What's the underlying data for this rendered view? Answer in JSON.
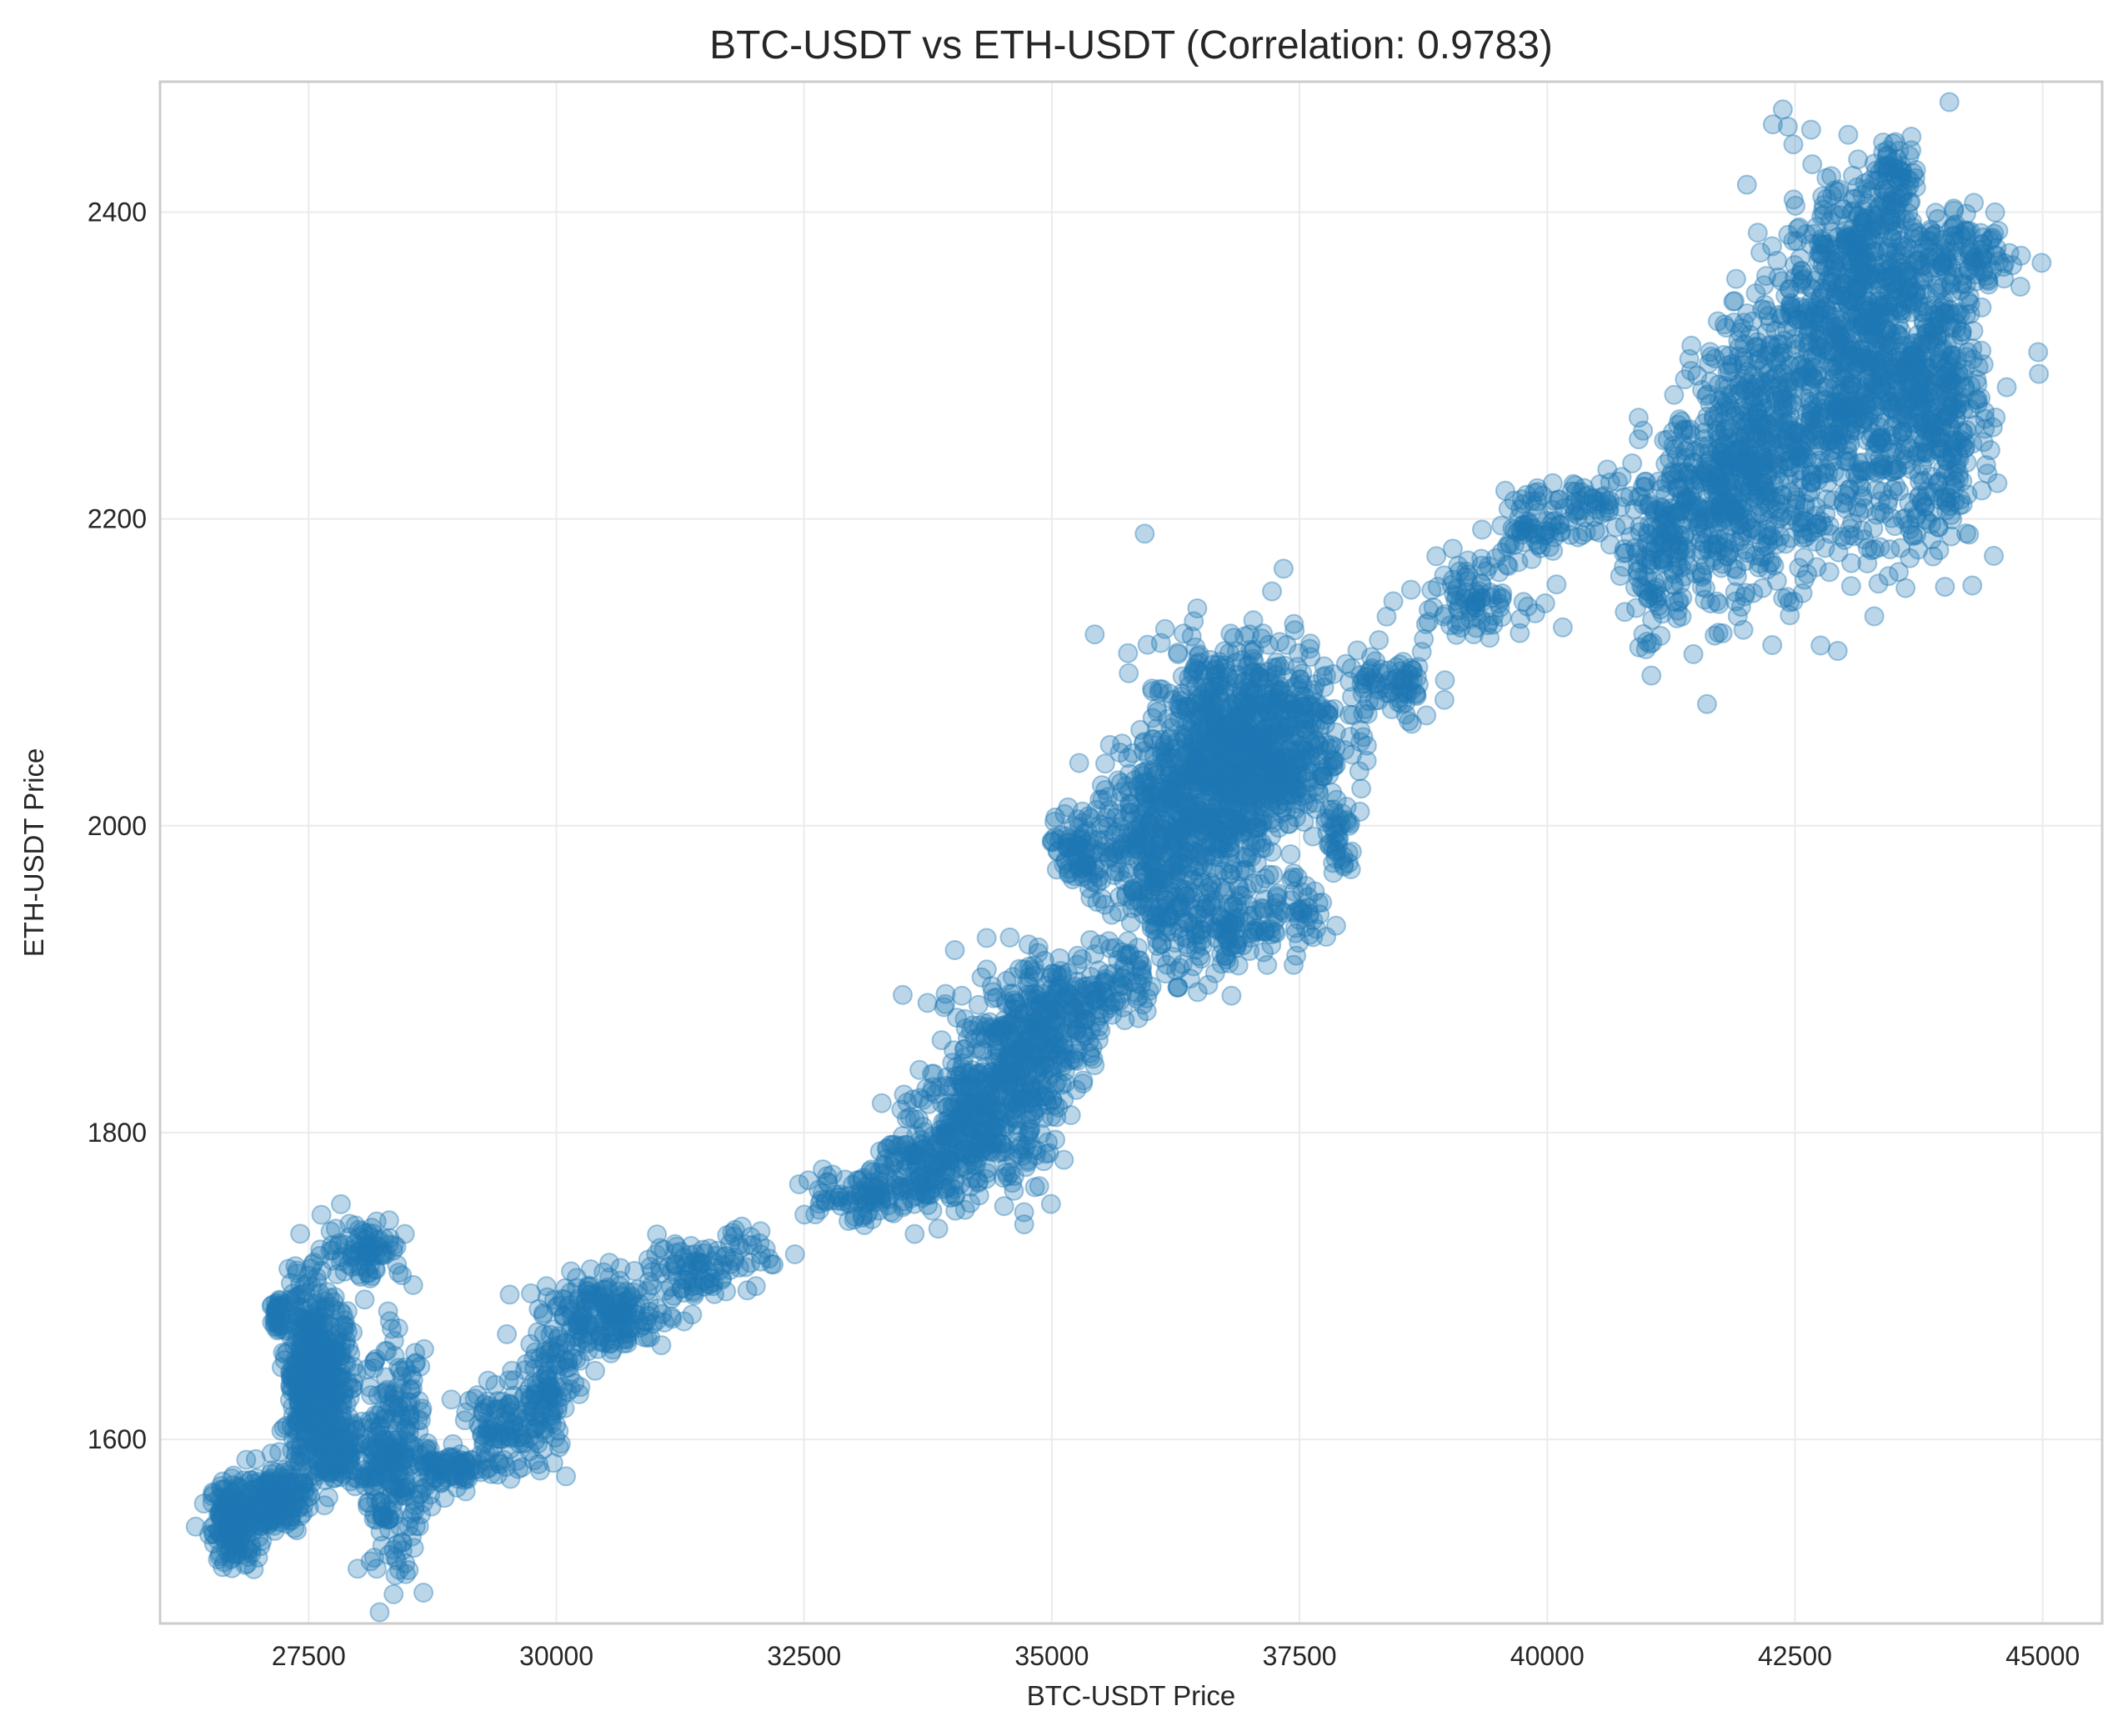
{
  "chart_data": {
    "type": "scatter",
    "title": "BTC-USDT vs ETH-USDT (Correlation: 0.9783)",
    "xlabel": "BTC-USDT Price",
    "ylabel": "ETH-USDT Price",
    "xlim": [
      26000,
      45600
    ],
    "ylim": [
      1480,
      2485
    ],
    "xticks": [
      27500,
      30000,
      32500,
      35000,
      37500,
      40000,
      42500,
      45000
    ],
    "yticks": [
      1600,
      1800,
      2000,
      2200,
      2400
    ],
    "grid": true,
    "legend": "none",
    "marker_color": "#1f77b4",
    "marker_alpha": 0.3,
    "series": [
      {
        "clusters": [
          {
            "x": 26750,
            "y": 1545,
            "sx": 120,
            "sy": 14,
            "n": 180
          },
          {
            "x": 27150,
            "y": 1560,
            "sx": 150,
            "sy": 10,
            "n": 160
          },
          {
            "x": 27450,
            "y": 1645,
            "sx": 90,
            "sy": 30,
            "n": 260
          },
          {
            "x": 27700,
            "y": 1640,
            "sx": 120,
            "sy": 25,
            "n": 220
          },
          {
            "x": 27200,
            "y": 1680,
            "sx": 40,
            "sy": 8,
            "n": 40
          },
          {
            "x": 28050,
            "y": 1725,
            "sx": 200,
            "sy": 10,
            "n": 90
          },
          {
            "x": 27800,
            "y": 1590,
            "sx": 250,
            "sy": 12,
            "n": 120
          },
          {
            "x": 28350,
            "y": 1585,
            "sx": 170,
            "sy": 35,
            "n": 260
          },
          {
            "x": 28900,
            "y": 1580,
            "sx": 200,
            "sy": 8,
            "n": 80
          },
          {
            "x": 29500,
            "y": 1605,
            "sx": 250,
            "sy": 14,
            "n": 120
          },
          {
            "x": 29950,
            "y": 1640,
            "sx": 130,
            "sy": 18,
            "n": 90
          },
          {
            "x": 30500,
            "y": 1680,
            "sx": 320,
            "sy": 12,
            "n": 200
          },
          {
            "x": 31350,
            "y": 1710,
            "sx": 300,
            "sy": 10,
            "n": 90
          },
          {
            "x": 32000,
            "y": 1730,
            "sx": 150,
            "sy": 8,
            "n": 20
          },
          {
            "x": 33000,
            "y": 1760,
            "sx": 280,
            "sy": 10,
            "n": 90
          },
          {
            "x": 33700,
            "y": 1775,
            "sx": 250,
            "sy": 15,
            "n": 120
          },
          {
            "x": 34250,
            "y": 1810,
            "sx": 320,
            "sy": 25,
            "n": 320
          },
          {
            "x": 34650,
            "y": 1850,
            "sx": 300,
            "sy": 30,
            "n": 260
          },
          {
            "x": 35100,
            "y": 1875,
            "sx": 200,
            "sy": 20,
            "n": 120
          },
          {
            "x": 35600,
            "y": 1895,
            "sx": 220,
            "sy": 12,
            "n": 80
          },
          {
            "x": 35300,
            "y": 1985,
            "sx": 180,
            "sy": 12,
            "n": 80
          },
          {
            "x": 36000,
            "y": 1985,
            "sx": 280,
            "sy": 35,
            "n": 320
          },
          {
            "x": 36650,
            "y": 2030,
            "sx": 360,
            "sy": 45,
            "n": 620
          },
          {
            "x": 37200,
            "y": 2060,
            "sx": 380,
            "sy": 30,
            "n": 480
          },
          {
            "x": 36700,
            "y": 1930,
            "sx": 320,
            "sy": 15,
            "n": 120
          },
          {
            "x": 37550,
            "y": 1940,
            "sx": 200,
            "sy": 10,
            "n": 40
          },
          {
            "x": 37900,
            "y": 1990,
            "sx": 80,
            "sy": 15,
            "n": 40
          },
          {
            "x": 38400,
            "y": 2090,
            "sx": 250,
            "sy": 12,
            "n": 80
          },
          {
            "x": 39200,
            "y": 2150,
            "sx": 300,
            "sy": 12,
            "n": 90
          },
          {
            "x": 39900,
            "y": 2195,
            "sx": 200,
            "sy": 12,
            "n": 70
          },
          {
            "x": 40400,
            "y": 2210,
            "sx": 250,
            "sy": 8,
            "n": 50
          },
          {
            "x": 41100,
            "y": 2170,
            "sx": 200,
            "sy": 30,
            "n": 120
          },
          {
            "x": 41600,
            "y": 2210,
            "sx": 300,
            "sy": 35,
            "n": 260
          },
          {
            "x": 42200,
            "y": 2250,
            "sx": 350,
            "sy": 45,
            "n": 420
          },
          {
            "x": 42900,
            "y": 2300,
            "sx": 420,
            "sy": 55,
            "n": 520
          },
          {
            "x": 43600,
            "y": 2290,
            "sx": 380,
            "sy": 55,
            "n": 480
          },
          {
            "x": 43200,
            "y": 2380,
            "sx": 250,
            "sy": 20,
            "n": 140
          },
          {
            "x": 43500,
            "y": 2420,
            "sx": 120,
            "sy": 12,
            "n": 60
          },
          {
            "x": 44250,
            "y": 2370,
            "sx": 300,
            "sy": 12,
            "n": 100
          },
          {
            "x": 44000,
            "y": 2270,
            "sx": 200,
            "sy": 40,
            "n": 180
          }
        ]
      }
    ]
  }
}
